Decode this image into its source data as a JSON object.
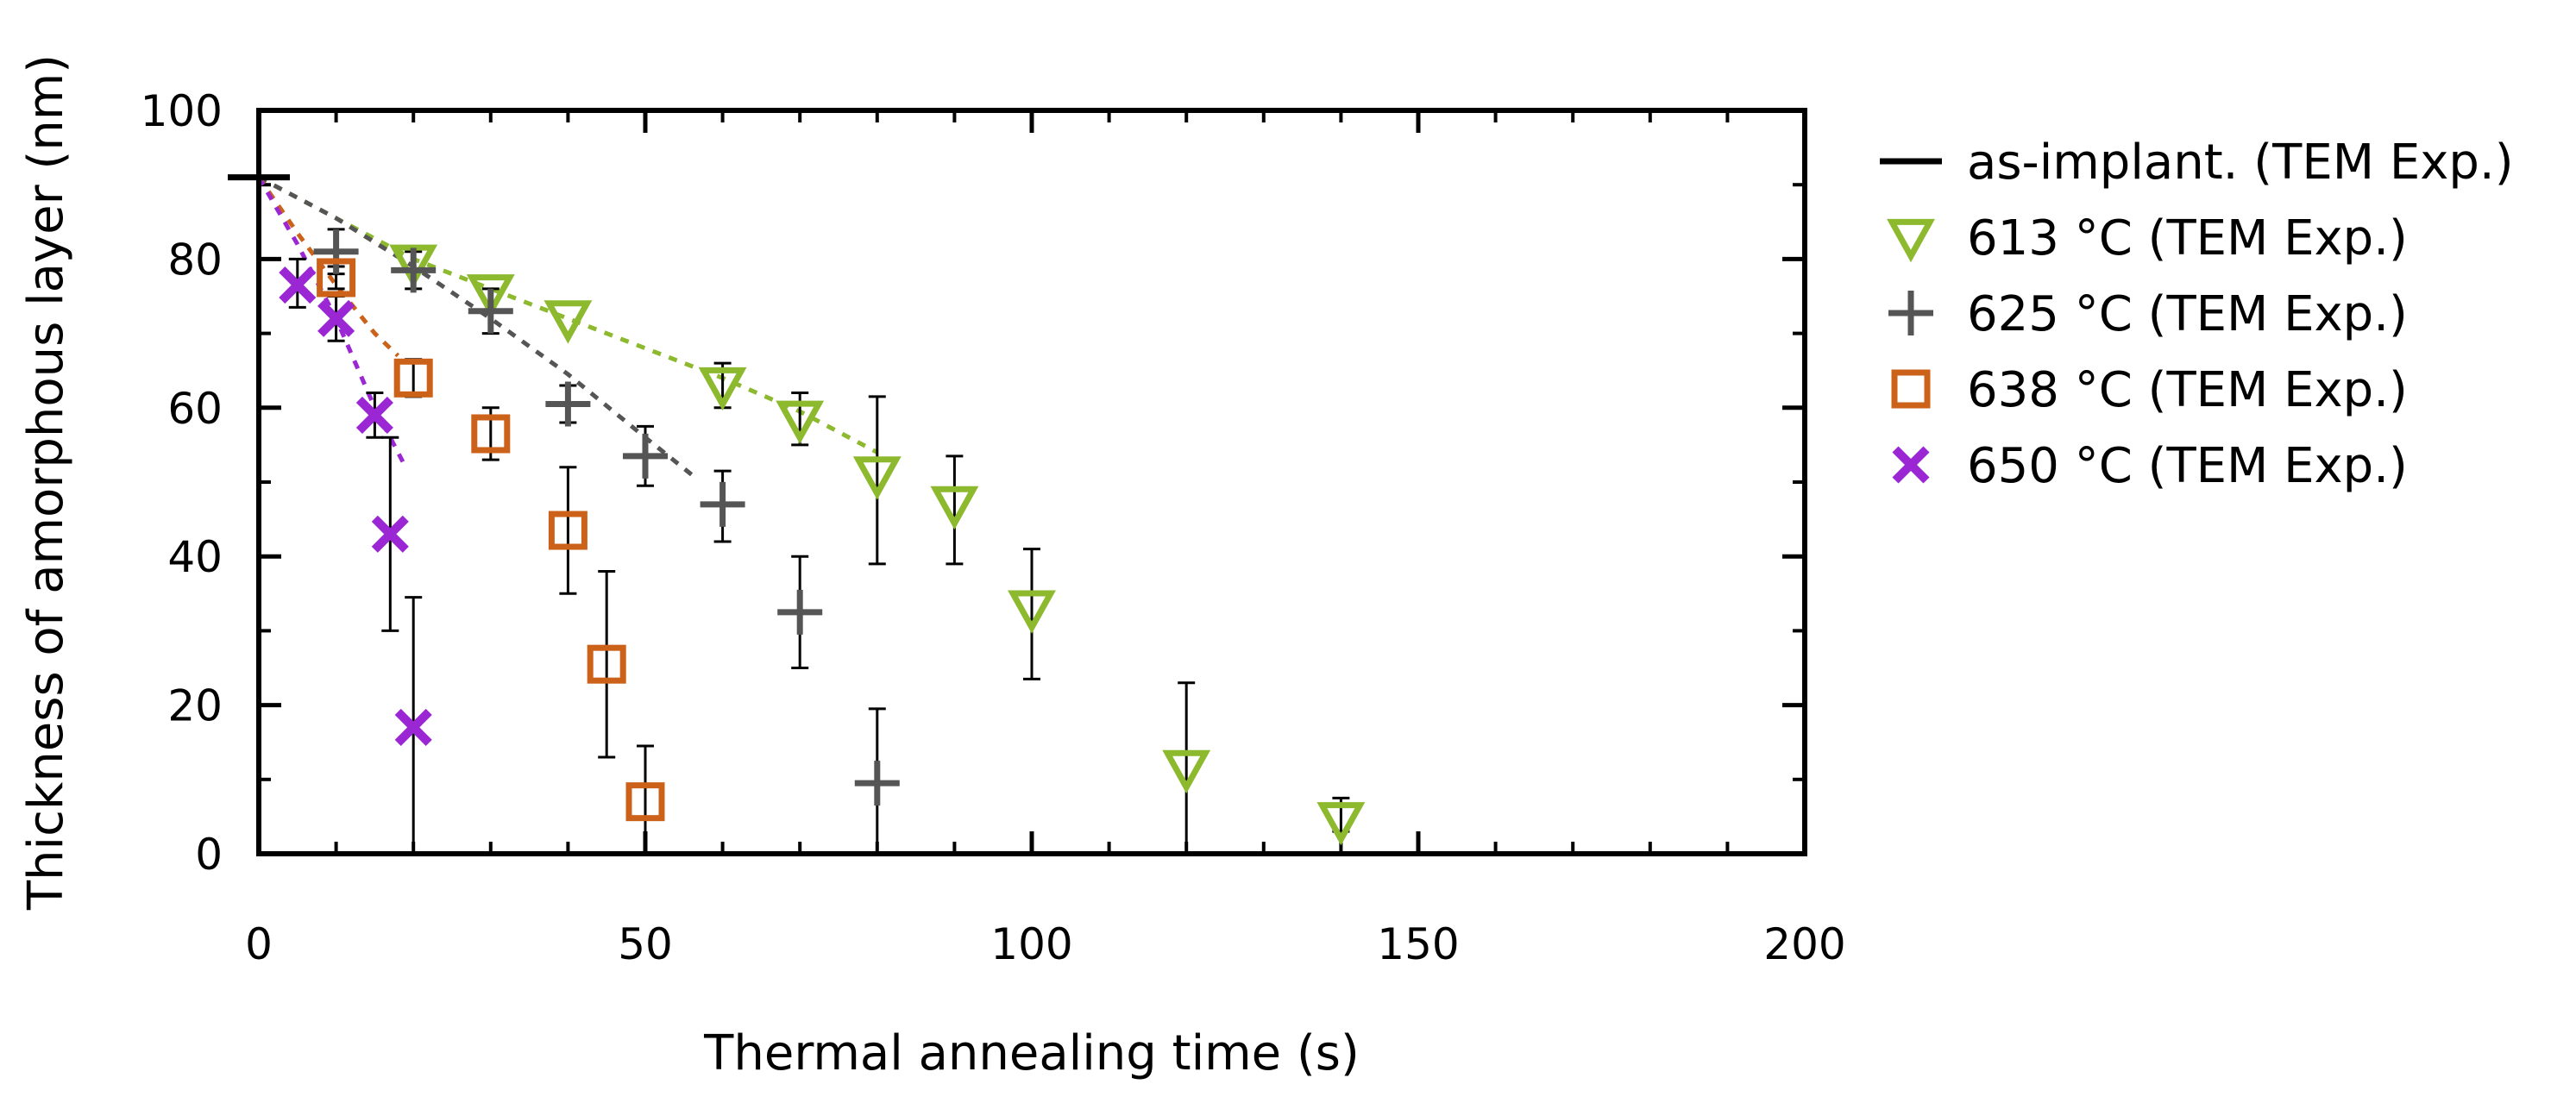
{
  "chart_data": {
    "type": "scatter",
    "xlabel": "Thermal annealing time (s)",
    "ylabel": "Thickness of amorphous layer (nm)",
    "xlim": [
      0,
      200
    ],
    "ylim": [
      0,
      100
    ],
    "xticks": [
      0,
      50,
      100,
      150,
      200
    ],
    "yticks": [
      0,
      20,
      40,
      60,
      80,
      100
    ],
    "legend_position": "right",
    "series": [
      {
        "name": "as-implant. (TEM Exp.)",
        "marker": "hbar",
        "color": "#000000",
        "points": [
          {
            "x": 0,
            "y": 91
          }
        ]
      },
      {
        "name": "613 °C (TEM Exp.)",
        "marker": "triangle-down",
        "color": "#8db92e",
        "points": [
          {
            "x": 20,
            "y": 79.5,
            "err": [
              79.5,
              79.5
            ]
          },
          {
            "x": 30,
            "y": 75.5,
            "err": [
              75.5,
              75.5
            ]
          },
          {
            "x": 40,
            "y": 72,
            "err": [
              72,
              72
            ]
          },
          {
            "x": 60,
            "y": 63,
            "err": [
              60,
              66
            ]
          },
          {
            "x": 70,
            "y": 58.5,
            "err": [
              55,
              62
            ]
          },
          {
            "x": 80,
            "y": 51,
            "err": [
              39,
              61.5
            ]
          },
          {
            "x": 90,
            "y": 47,
            "err": [
              39,
              53.5
            ]
          },
          {
            "x": 100,
            "y": 33,
            "err": [
              23.5,
              41
            ]
          },
          {
            "x": 120,
            "y": 11.5,
            "err": [
              0,
              23
            ]
          },
          {
            "x": 140,
            "y": 4.5,
            "err": [
              3,
              7.5
            ]
          }
        ],
        "fit": [
          [
            0,
            91
          ],
          [
            20,
            80
          ],
          [
            40,
            72
          ],
          [
            60,
            64
          ],
          [
            70,
            59.5
          ],
          [
            80,
            54
          ]
        ]
      },
      {
        "name": "625 °C (TEM Exp.)",
        "marker": "plus",
        "color": "#555555",
        "points": [
          {
            "x": 10,
            "y": 81,
            "err": [
              78,
              84
            ]
          },
          {
            "x": 20,
            "y": 78.5,
            "err": [
              76,
              81
            ]
          },
          {
            "x": 30,
            "y": 73,
            "err": [
              70,
              76
            ]
          },
          {
            "x": 40,
            "y": 60.5,
            "err": [
              58,
              63
            ]
          },
          {
            "x": 50,
            "y": 53.5,
            "err": [
              49.5,
              57.5
            ]
          },
          {
            "x": 60,
            "y": 47,
            "err": [
              42,
              51.5
            ]
          },
          {
            "x": 70,
            "y": 32.5,
            "err": [
              25,
              40
            ]
          },
          {
            "x": 80,
            "y": 9.5,
            "err": [
              0,
              19.5
            ]
          }
        ],
        "fit": [
          [
            0,
            91
          ],
          [
            10,
            85.5
          ],
          [
            20,
            79
          ],
          [
            30,
            72
          ],
          [
            40,
            64.5
          ],
          [
            50,
            56
          ],
          [
            56,
            51
          ]
        ]
      },
      {
        "name": "638 °C (TEM Exp.)",
        "marker": "square",
        "color": "#cc6119",
        "points": [
          {
            "x": 10,
            "y": 77.5,
            "err": [
              76,
              79
            ]
          },
          {
            "x": 20,
            "y": 64,
            "err": [
              61.5,
              66.5
            ]
          },
          {
            "x": 30,
            "y": 56.5,
            "err": [
              53,
              60
            ]
          },
          {
            "x": 40,
            "y": 43.5,
            "err": [
              35,
              52
            ]
          },
          {
            "x": 45,
            "y": 25.5,
            "err": [
              13,
              38
            ]
          },
          {
            "x": 50,
            "y": 7,
            "err": [
              0,
              14.5
            ]
          }
        ],
        "fit": [
          [
            0,
            91
          ],
          [
            5,
            83.5
          ],
          [
            10,
            76.5
          ],
          [
            15,
            70
          ],
          [
            18,
            67
          ]
        ]
      },
      {
        "name": "650 °C (TEM Exp.)",
        "marker": "cross",
        "color": "#9b27d4",
        "points": [
          {
            "x": 5,
            "y": 76.5,
            "err": [
              73.5,
              80
            ]
          },
          {
            "x": 10,
            "y": 72,
            "err": [
              69,
              75
            ]
          },
          {
            "x": 15,
            "y": 59,
            "err": [
              56,
              62
            ]
          },
          {
            "x": 17,
            "y": 43,
            "err": [
              30,
              56
            ]
          },
          {
            "x": 20,
            "y": 17,
            "err": [
              0,
              34.5
            ]
          }
        ],
        "fit": [
          [
            0,
            91
          ],
          [
            5,
            82
          ],
          [
            10,
            72
          ],
          [
            15,
            60
          ],
          [
            19,
            52
          ]
        ]
      }
    ]
  }
}
